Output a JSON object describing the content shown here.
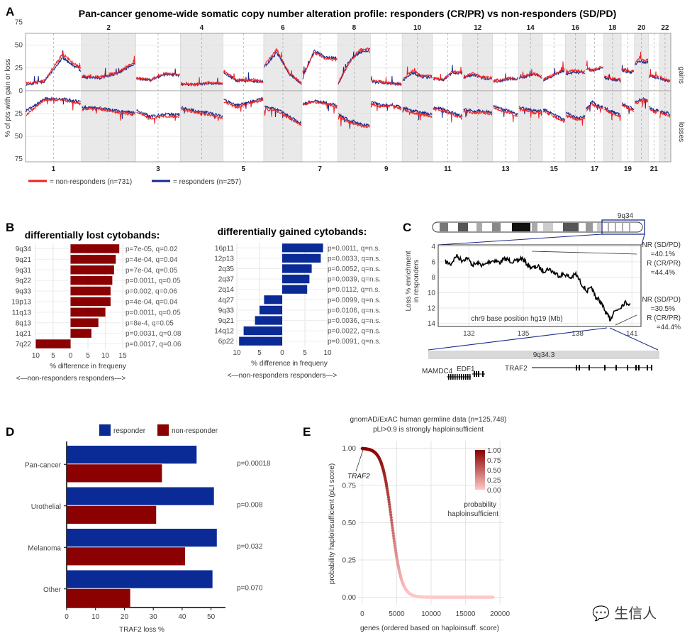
{
  "panels": {
    "A": "A",
    "B": "B",
    "C": "C",
    "D": "D",
    "E": "E"
  },
  "colors": {
    "non_responder": "#ee2222",
    "responder": "#1a2a8c",
    "dark_red": "#8b0000",
    "dark_blue": "#0a2a96",
    "shade": "#e9e9e9"
  },
  "chart_data": [
    {
      "id": "A",
      "type": "line",
      "title": "Pan-cancer genome-wide somatic copy number alteration profile: responders (CR/PR) vs non-responders (SD/PD)",
      "ylabel": "% of pts with gain or loss",
      "y_ticks": [
        "75",
        "50",
        "25",
        "0",
        "25",
        "50",
        "75"
      ],
      "ylim": [
        -78,
        63
      ],
      "right_labels": {
        "top": "gains",
        "bottom": "losses"
      },
      "chromosomes_top": [
        "2",
        "4",
        "6",
        "8",
        "10",
        "12",
        "14",
        "16",
        "18",
        "20",
        "22"
      ],
      "chromosomes_bottom": [
        "1",
        "3",
        "5",
        "7",
        "9",
        "11",
        "13",
        "15",
        "17",
        "19",
        "21"
      ],
      "chrom_sizes": [
        249,
        243,
        198,
        191,
        181,
        171,
        159,
        146,
        141,
        136,
        135,
        133,
        115,
        107,
        102,
        90,
        81,
        78,
        59,
        63,
        48,
        51
      ],
      "gain_nonresp": [
        [
          8,
          11,
          40,
          24
        ],
        [
          16,
          15,
          20,
          32
        ],
        [
          14,
          12,
          19,
          18
        ],
        [
          8,
          7,
          9,
          8
        ],
        [
          22,
          12,
          12,
          10
        ],
        [
          28,
          45,
          20,
          8
        ],
        [
          16,
          42,
          35,
          34
        ],
        [
          9,
          30,
          45,
          46
        ],
        [
          11,
          10,
          8,
          7
        ],
        [
          12,
          22,
          16,
          16
        ],
        [
          14,
          12,
          21,
          20
        ],
        [
          15,
          19,
          15,
          14
        ],
        [
          11,
          12,
          14,
          13
        ],
        [
          14,
          17,
          19,
          16
        ],
        [
          12,
          16,
          20,
          24
        ],
        [
          20,
          22,
          22,
          21
        ],
        [
          26,
          23,
          24,
          27
        ],
        [
          15,
          14,
          13,
          12
        ],
        [
          24,
          23,
          21,
          22
        ],
        [
          30,
          36,
          33,
          34
        ],
        [
          16,
          17,
          15,
          15
        ],
        [
          15,
          13,
          12,
          11
        ]
      ],
      "gain_resp": [
        [
          7,
          10,
          36,
          22
        ],
        [
          15,
          14,
          19,
          30
        ],
        [
          13,
          12,
          18,
          17
        ],
        [
          7,
          7,
          8,
          8
        ],
        [
          20,
          11,
          11,
          10
        ],
        [
          26,
          42,
          19,
          8
        ],
        [
          14,
          44,
          37,
          36
        ],
        [
          8,
          32,
          42,
          43
        ],
        [
          10,
          9,
          8,
          7
        ],
        [
          11,
          20,
          15,
          15
        ],
        [
          13,
          12,
          20,
          19
        ],
        [
          14,
          18,
          14,
          13
        ],
        [
          10,
          11,
          13,
          12
        ],
        [
          13,
          16,
          18,
          15
        ],
        [
          11,
          15,
          19,
          22
        ],
        [
          18,
          20,
          20,
          20
        ],
        [
          24,
          22,
          23,
          25
        ],
        [
          14,
          13,
          12,
          11
        ],
        [
          22,
          21,
          20,
          21
        ],
        [
          28,
          33,
          31,
          32
        ],
        [
          15,
          16,
          14,
          14
        ],
        [
          14,
          12,
          11,
          10
        ]
      ],
      "loss_nonresp": [
        [
          -26,
          -10,
          -10,
          -14
        ],
        [
          -20,
          -20,
          -24,
          -26
        ],
        [
          -24,
          -30,
          -28,
          -28
        ],
        [
          -20,
          -24,
          -26,
          -30
        ],
        [
          -12,
          -18,
          -14,
          -10
        ],
        [
          -20,
          -22,
          -30,
          -38
        ],
        [
          -15,
          -12,
          -14,
          -18
        ],
        [
          -28,
          -34,
          -38,
          -40
        ],
        [
          -14,
          -18,
          -16,
          -20
        ],
        [
          -20,
          -24,
          -26,
          -28
        ],
        [
          -20,
          -22,
          -26,
          -30
        ],
        [
          -22,
          -24,
          -24,
          -26
        ],
        [
          -18,
          -22,
          -24,
          -28
        ],
        [
          -20,
          -22,
          -24,
          -24
        ],
        [
          -22,
          -26,
          -30,
          -34
        ],
        [
          -26,
          -30,
          -32,
          -30
        ],
        [
          -22,
          -14,
          -18,
          -20
        ],
        [
          -20,
          -24,
          -26,
          -28
        ],
        [
          -16,
          -18,
          -20,
          -22
        ],
        [
          -14,
          -12,
          -10,
          -12
        ],
        [
          -20,
          -22,
          -24,
          -22
        ],
        [
          -24,
          -26,
          -26,
          -28
        ]
      ],
      "loss_resp": [
        [
          -22,
          -9,
          -9,
          -12
        ],
        [
          -18,
          -19,
          -22,
          -24
        ],
        [
          -22,
          -28,
          -26,
          -26
        ],
        [
          -18,
          -22,
          -24,
          -28
        ],
        [
          -10,
          -16,
          -12,
          -9
        ],
        [
          -18,
          -20,
          -28,
          -36
        ],
        [
          -14,
          -11,
          -13,
          -16
        ],
        [
          -26,
          -32,
          -36,
          -38
        ],
        [
          -12,
          -16,
          -15,
          -18
        ],
        [
          -18,
          -22,
          -24,
          -26
        ],
        [
          -18,
          -20,
          -24,
          -28
        ],
        [
          -20,
          -22,
          -22,
          -24
        ],
        [
          -16,
          -20,
          -22,
          -26
        ],
        [
          -18,
          -20,
          -22,
          -22
        ],
        [
          -20,
          -24,
          -28,
          -32
        ],
        [
          -24,
          -28,
          -30,
          -28
        ],
        [
          -20,
          -12,
          -16,
          -18
        ],
        [
          -18,
          -22,
          -24,
          -26
        ],
        [
          -14,
          -16,
          -18,
          -20
        ],
        [
          -12,
          -10,
          -9,
          -11
        ],
        [
          -18,
          -20,
          -22,
          -20
        ],
        [
          -22,
          -24,
          -24,
          -26
        ]
      ],
      "legend": [
        "= non-responders (n=731)",
        "= responders (n=257)"
      ]
    },
    {
      "id": "B_lost",
      "type": "bar",
      "title": "differentially lost cytobands:",
      "categories": [
        "9q34",
        "9q21",
        "9q31",
        "9q22",
        "9q33",
        "19p13",
        "11q13",
        "8q13",
        "1q21",
        "7q22"
      ],
      "values": [
        14,
        13,
        12.5,
        12,
        11.5,
        11.5,
        10,
        8,
        6,
        -10
      ],
      "pvalues": [
        "p=7e-05, q=0.02",
        "p=4e-04, q=0.04",
        "p=7e-04, q=0.05",
        "p=0.0011, q=0.05",
        "p=0.002, q=0.06",
        "p=4e-04, q=0.04",
        "p=0.0011, q=0.05",
        "p=8e-4, q=0.05",
        "p=0.0031, q=0.08",
        "p=0.0017, q=0.06"
      ],
      "x_ticks": [
        "10",
        "5",
        "0",
        "5",
        "10",
        "15"
      ],
      "xlabel": "% difference in frequeny",
      "direction": "<—non-responders    responders—>"
    },
    {
      "id": "B_gained",
      "type": "bar",
      "title": "differentially gained cytobands:",
      "categories": [
        "16p11",
        "12p13",
        "2q35",
        "2q37",
        "2q14",
        "4q27",
        "9q33",
        "9q21",
        "14q12",
        "6p22"
      ],
      "values": [
        9,
        8.5,
        6.5,
        6,
        5.5,
        -4,
        -5,
        -6,
        -8.5,
        -9.5
      ],
      "pvalues": [
        "p=0.0011, q=n.s.",
        "p=0.0033, q=n.s.",
        "p=0.0052, q=n.s.",
        "p=0.0039, q=n.s.",
        "p=0.0112, q=n.s.",
        "p=0.0099, q=n.s.",
        "p=0.0106, q=n.s.",
        "p=0.0036, q=n.s.",
        "p=0.0022, q=n.s.",
        "p=0.0091, q=n.s."
      ],
      "x_ticks": [
        "10",
        "5",
        "0",
        "5",
        "10"
      ],
      "xlabel": "% difference in frequeny",
      "direction": "<—non-responders    responders—>"
    },
    {
      "id": "C",
      "type": "line",
      "band": "9q34",
      "ylabel": "Loss % enrichment in responders",
      "xlabel": "chr9 base position hg19 (Mb)",
      "x_ticks": [
        "132",
        "135",
        "138",
        "141"
      ],
      "y_ticks": [
        "4",
        "6",
        "8",
        "10",
        "12",
        "14"
      ],
      "annotation_top": [
        "NR (SD/PD)",
        "=40.1%",
        "R (CR/PR)",
        "=44.4%"
      ],
      "annotation_bottom": [
        "NR (SD/PD)",
        "=30.5%",
        "R (CR/PR)",
        "=44.4%"
      ],
      "subband": "9q34.3",
      "genes": [
        "MAMDC4",
        "EDF1",
        "TRAF2"
      ],
      "x": [
        130.7,
        131.0,
        131.3,
        131.6,
        131.9,
        132.2,
        132.5,
        132.8,
        133.1,
        133.4,
        133.7,
        134.0,
        134.3,
        134.6,
        134.9,
        135.2,
        135.5,
        135.8,
        136.1,
        136.4,
        136.7,
        137.0,
        137.3,
        137.6,
        137.9,
        138.2,
        138.5,
        138.8,
        139.0,
        139.2,
        139.4,
        139.6,
        139.8,
        140.0,
        140.3,
        140.6,
        140.9
      ],
      "y": [
        6.0,
        6.3,
        5.2,
        5.8,
        5.5,
        6.4,
        6.2,
        6.5,
        6.0,
        5.8,
        6.1,
        5.6,
        5.9,
        6.0,
        5.5,
        6.3,
        6.8,
        6.6,
        7.2,
        6.9,
        7.4,
        7.8,
        7.6,
        8.1,
        7.6,
        8.8,
        9.8,
        9.5,
        10.6,
        11.0,
        11.8,
        12.8,
        13.5,
        12.5,
        12.0,
        11.3,
        11.4
      ]
    },
    {
      "id": "D",
      "type": "bar",
      "legend": [
        "responder",
        "non-responder"
      ],
      "categories": [
        "Pan-cancer",
        "Urothelial",
        "Melanoma",
        "Other"
      ],
      "series": [
        {
          "name": "responder",
          "values": [
            45,
            51,
            52,
            50.5
          ]
        },
        {
          "name": "non-responder",
          "values": [
            33,
            31,
            41,
            22
          ]
        }
      ],
      "pvalues": [
        "p=0.00018",
        "p=0.008",
        "p=0.032",
        "p=0.070"
      ],
      "x_ticks": [
        "0",
        "10",
        "20",
        "30",
        "40",
        "50"
      ],
      "xlabel": "TRAF2 loss %"
    },
    {
      "id": "E",
      "type": "scatter",
      "title_lines": [
        "gnomAD/ExAC human germline data (n=125,748)",
        "pLI>0.9 is strongly haploinsufficient"
      ],
      "ylabel": "probability haploinsufficient (pLI score)",
      "xlabel": "genes (ordered based on haploinsuff. score)",
      "x_ticks": [
        "0",
        "5000",
        "10000",
        "15000",
        "20000"
      ],
      "y_ticks": [
        "0.00",
        "0.25",
        "0.50",
        "0.75",
        "1.00"
      ],
      "annotation": "TRAF2",
      "legend_ticks": [
        "1.00",
        "0.75",
        "0.50",
        "0.25",
        "0.00"
      ],
      "legend_title": [
        "probability",
        "haploinsufficient"
      ],
      "curve_midpoint": 4300,
      "curve_n": 19000
    }
  ],
  "watermark": "💬 生信人"
}
